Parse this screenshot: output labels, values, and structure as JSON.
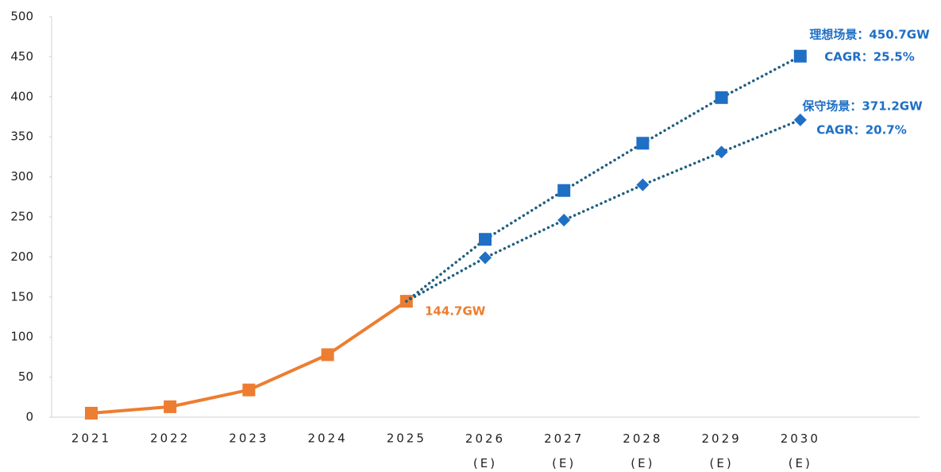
{
  "chart_data": {
    "type": "line",
    "categories": [
      "2021",
      "2022",
      "2023",
      "2024",
      "2025",
      "2026 (E)",
      "2027 (E)",
      "2028 (E)",
      "2029 (E)",
      "2030 (E)"
    ],
    "ylim": [
      0,
      500
    ],
    "yticks": [
      0,
      50,
      100,
      150,
      200,
      250,
      300,
      350,
      400,
      450,
      500
    ],
    "grid": false,
    "series": [
      {
        "color": "#ed7d31",
        "style": "solid",
        "marker": "square",
        "values": [
          5,
          13,
          34,
          78,
          144.7,
          null,
          null,
          null,
          null,
          null
        ],
        "annotation": [
          "144.7GW"
        ]
      },
      {
        "color": "#1f6fc5",
        "line_color": "#215f80",
        "style": "dotted",
        "marker": "square",
        "values": [
          null,
          null,
          null,
          null,
          144.7,
          222,
          283,
          342,
          399,
          450.7
        ],
        "annotation": [
          "理想场景：450.7GW",
          "CAGR：25.5%"
        ]
      },
      {
        "color": "#1f6fc5",
        "line_color": "#215f80",
        "style": "dotted",
        "marker": "diamond",
        "values": [
          null,
          null,
          null,
          null,
          144.7,
          199,
          246,
          290,
          331,
          371.2
        ],
        "annotation": [
          "保守场景：371.2GW",
          "CAGR：20.7%"
        ]
      }
    ]
  }
}
